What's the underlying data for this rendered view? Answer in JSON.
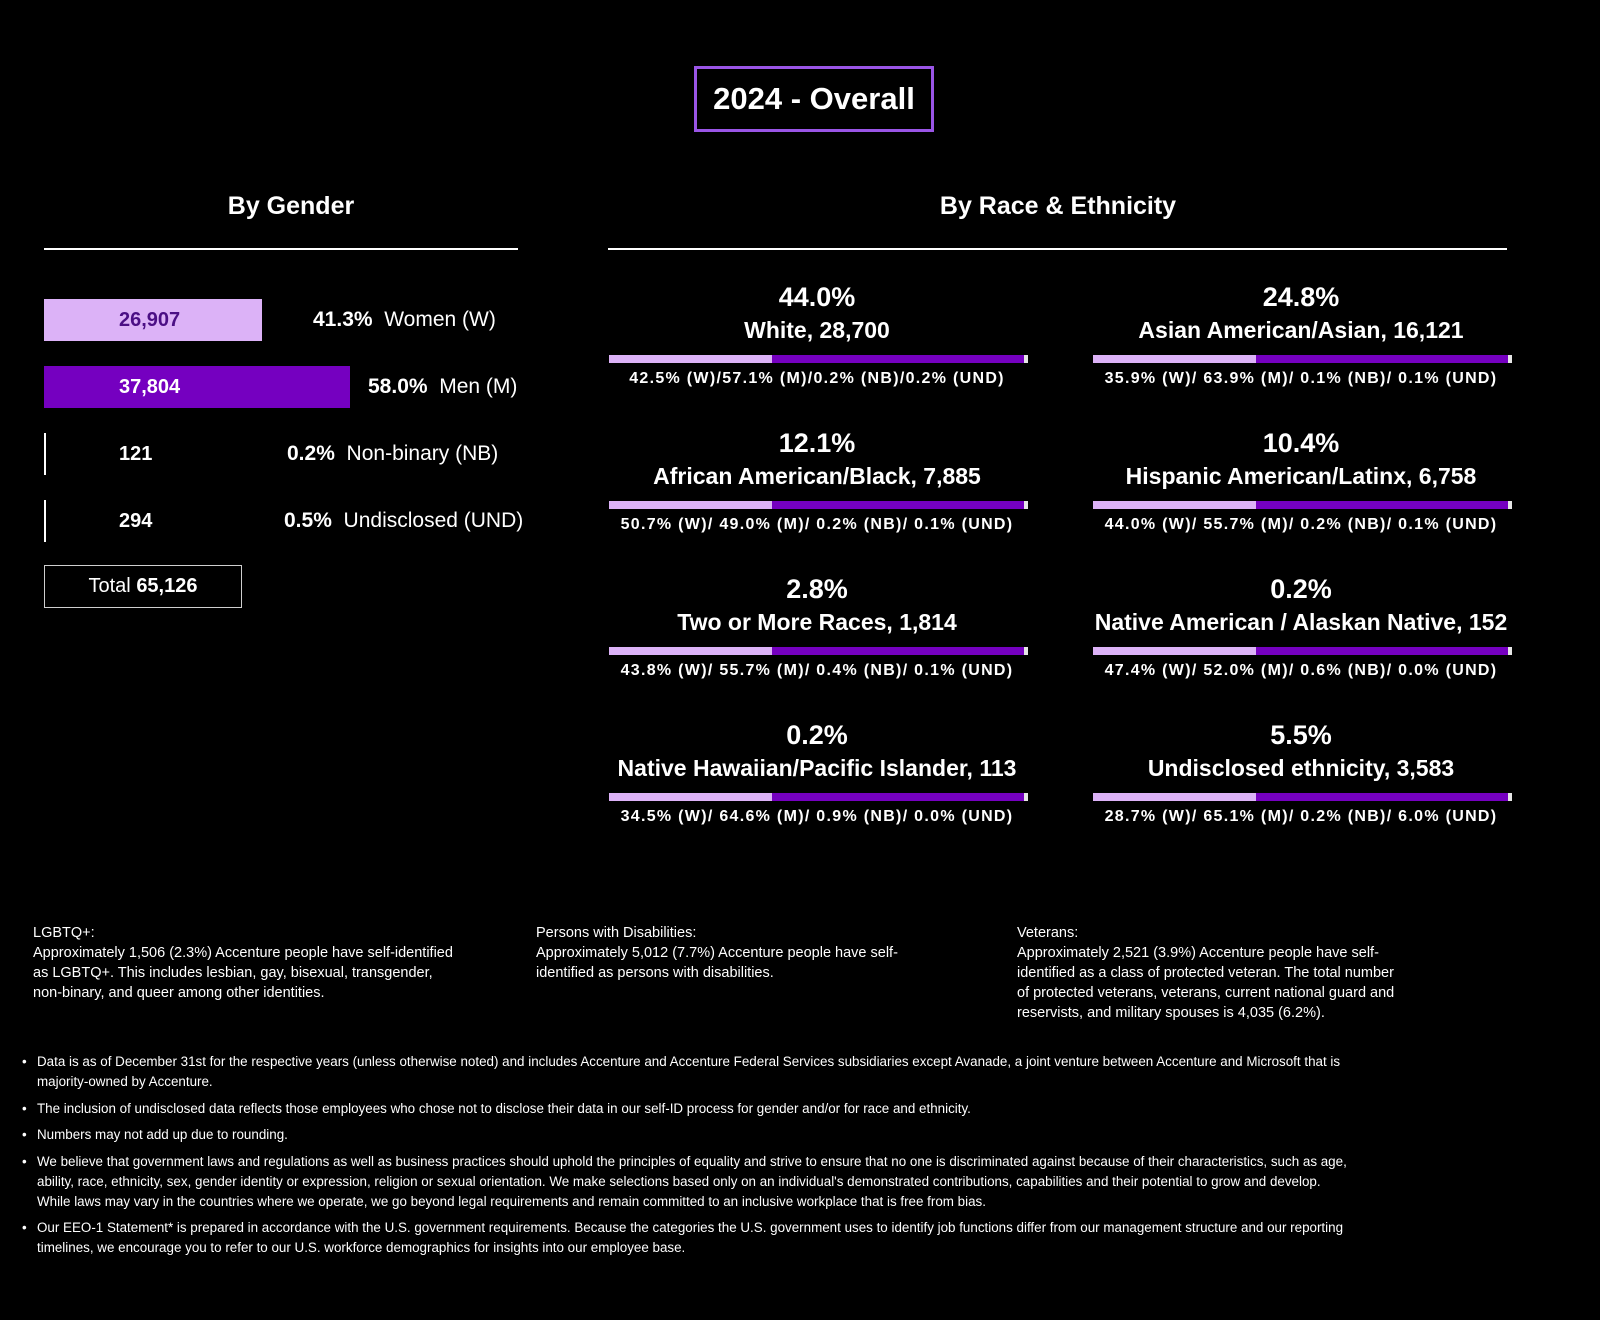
{
  "title": "2024 - Overall",
  "gender": {
    "heading": "By Gender",
    "rows": [
      {
        "count": "26,907",
        "percent": "41.3%",
        "label": "Women (W)"
      },
      {
        "count": "37,804",
        "percent": "58.0%",
        "label": "Men (M)"
      },
      {
        "count": "121",
        "percent": "0.2%",
        "label": "Non-binary (NB)"
      },
      {
        "count": "294",
        "percent": "0.5%",
        "label": "Undisclosed (UND)"
      }
    ],
    "total_label": "Total",
    "total_value": "65,126"
  },
  "race": {
    "heading": "By Race & Ethnicity",
    "groups": [
      {
        "percent": "44.0%",
        "name": "White, 28,700",
        "split": "42.5% (W)/57.1% (M)/0.2% (NB)/0.2% (UND)"
      },
      {
        "percent": "24.8%",
        "name": "Asian American/Asian, 16,121",
        "split": "35.9% (W)/ 63.9% (M)/ 0.1% (NB)/ 0.1% (UND)"
      },
      {
        "percent": "12.1%",
        "name": "African American/Black, 7,885",
        "split": "50.7% (W)/ 49.0% (M)/ 0.2% (NB)/ 0.1% (UND)"
      },
      {
        "percent": "10.4%",
        "name": "Hispanic American/Latinx, 6,758",
        "split": "44.0% (W)/ 55.7% (M)/ 0.2% (NB)/ 0.1% (UND)"
      },
      {
        "percent": "2.8%",
        "name": "Two or More Races, 1,814",
        "split": "43.8% (W)/ 55.7% (M)/ 0.4% (NB)/ 0.1% (UND)"
      },
      {
        "percent": "0.2%",
        "name": "Native American / Alaskan Native, 152",
        "split": "47.4% (W)/ 52.0% (M)/ 0.6% (NB)/ 0.0% (UND)"
      },
      {
        "percent": "0.2%",
        "name": "Native Hawaiian/Pacific Islander, 113",
        "split": "34.5% (W)/ 64.6% (M)/ 0.9% (NB)/ 0.0% (UND)"
      },
      {
        "percent": "5.5%",
        "name": "Undisclosed ethnicity, 3,583",
        "split": "28.7% (W)/ 65.1% (M)/ 0.2% (NB)/ 6.0% (UND)"
      }
    ]
  },
  "notes": {
    "lgbtq": {
      "title": "LGBTQ+:",
      "body": "Approximately 1,506 (2.3%) Accenture people have self-identified as LGBTQ+. This includes lesbian, gay, bisexual, transgender, non-binary, and queer among other identities."
    },
    "disabilities": {
      "title": "Persons with Disabilities:",
      "body": "Approximately 5,012 (7.7%) Accenture people have self-identified as persons with disabilities."
    },
    "veterans": {
      "title": "Veterans:",
      "body": "Approximately 2,521 (3.9%) Accenture people have self-identified as a class of protected veteran. The total number of protected veterans, veterans, current national guard and reservists, and military spouses is 4,035 (6.2%)."
    }
  },
  "footnotes": [
    "Data is as of December 31st for the respective years (unless otherwise noted) and includes Accenture and Accenture Federal Services subsidiaries except Avanade, a joint venture between Accenture and Microsoft that is majority-owned by Accenture.",
    "The inclusion of undisclosed data reflects those employees who chose not to disclose their data in our self-ID process for gender and/or for race and ethnicity.",
    "Numbers may not add up due to rounding.",
    "We believe that government laws and regulations as well as business practices should uphold the principles of equality and strive to ensure that no one is discriminated against because of their characteristics, such as age, ability, race, ethnicity, sex, gender identity or expression, religion or sexual orientation. We make selections based only on an individual's demonstrated contributions, capabilities and their potential to grow and develop. While laws may vary in the countries where we operate, we go beyond legal requirements and remain committed to an inclusive workplace that is free from bias.",
    "Our EEO-1 Statement* is prepared in accordance with the U.S. government requirements. Because the categories the U.S. government uses to identify job functions differ from our management structure and our reporting timelines, we encourage you to refer to our U.S. workforce demographics for insights into our employee base."
  ],
  "colors": {
    "women": "#dcb2f7",
    "men": "#7500c0",
    "nb": "#ffffff",
    "und": "#ffffff"
  },
  "chart_data": [
    {
      "type": "bar",
      "title": "By Gender",
      "categories": [
        "Women (W)",
        "Men (M)",
        "Non-binary (NB)",
        "Undisclosed (UND)"
      ],
      "values": [
        26907,
        37804,
        121,
        294
      ],
      "percents": [
        41.3,
        58.0,
        0.2,
        0.5
      ],
      "total": 65126
    },
    {
      "type": "bar",
      "title": "By Race & Ethnicity",
      "categories": [
        "White",
        "Asian American/Asian",
        "African American/Black",
        "Hispanic American/Latinx",
        "Two or More Races",
        "Native American / Alaskan Native",
        "Native Hawaiian/Pacific Islander",
        "Undisclosed ethnicity"
      ],
      "counts": [
        28700,
        16121,
        7885,
        6758,
        1814,
        152,
        113,
        3583
      ],
      "percents": [
        44.0,
        24.8,
        12.1,
        10.4,
        2.8,
        0.2,
        0.2,
        5.5
      ],
      "series": [
        {
          "name": "W",
          "values": [
            42.5,
            35.9,
            50.7,
            44.0,
            43.8,
            47.4,
            34.5,
            28.7
          ]
        },
        {
          "name": "M",
          "values": [
            57.1,
            63.9,
            49.0,
            55.7,
            55.7,
            52.0,
            64.6,
            65.1
          ]
        },
        {
          "name": "NB",
          "values": [
            0.2,
            0.1,
            0.2,
            0.2,
            0.4,
            0.6,
            0.9,
            0.2
          ]
        },
        {
          "name": "UND",
          "values": [
            0.2,
            0.1,
            0.1,
            0.1,
            0.1,
            0.0,
            0.0,
            6.0
          ]
        }
      ]
    }
  ]
}
